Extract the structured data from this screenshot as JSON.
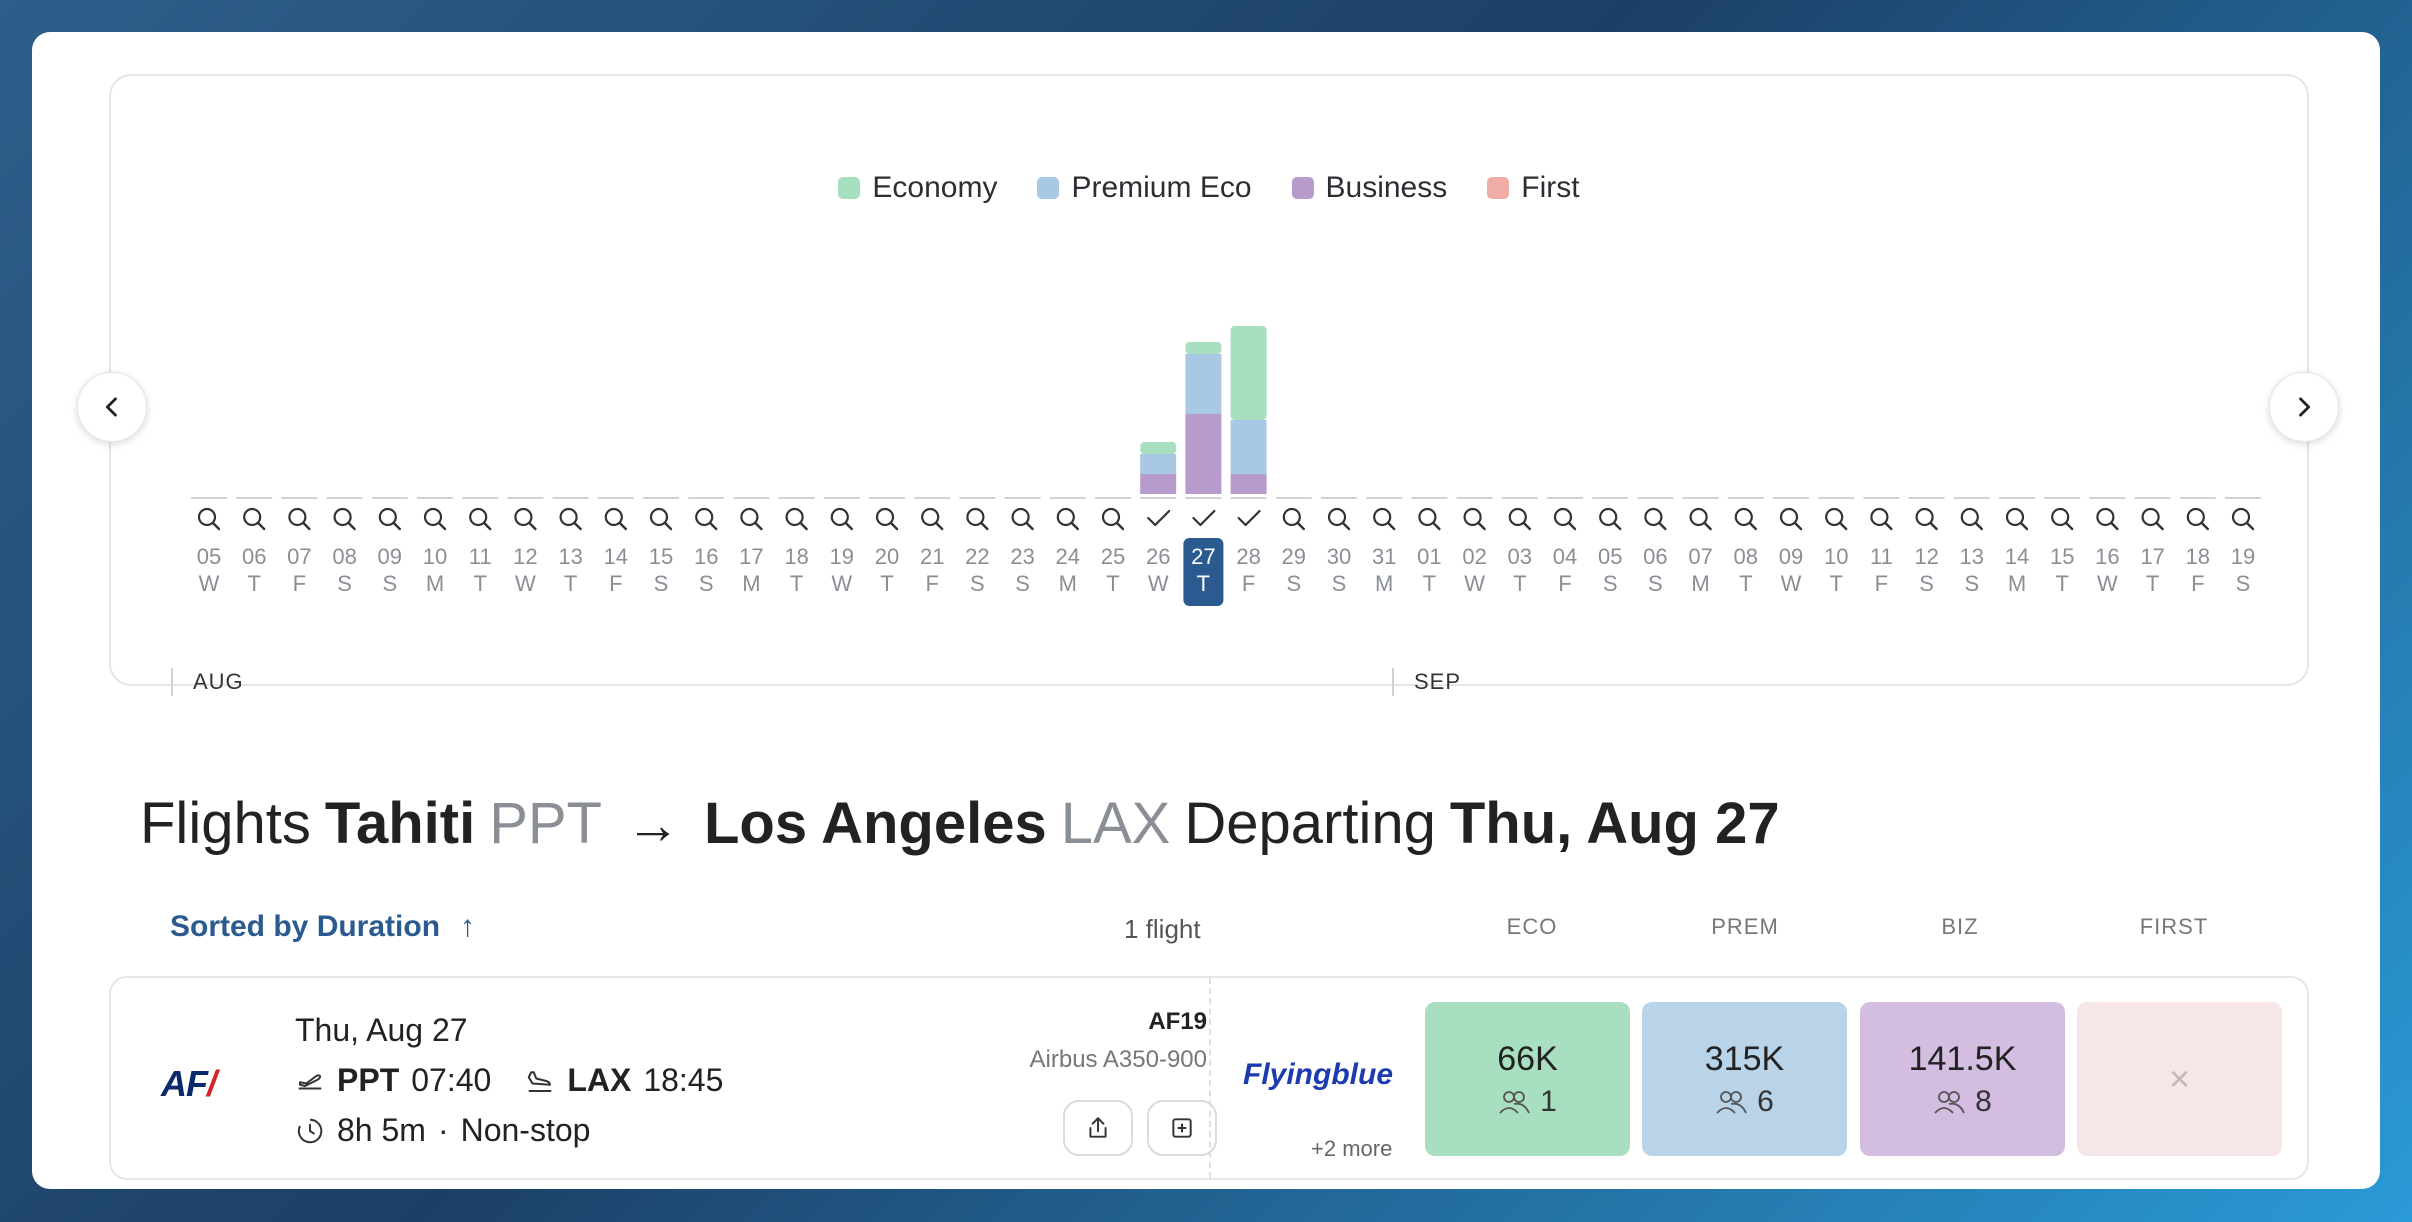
{
  "legend": [
    {
      "label": "Economy",
      "color": "#a8dfc0"
    },
    {
      "label": "Premium Eco",
      "color": "#a9c8e4"
    },
    {
      "label": "Business",
      "color": "#b79bcc"
    },
    {
      "label": "First",
      "color": "#f0aca6"
    }
  ],
  "calendar": {
    "months": [
      {
        "label": "AUG",
        "start_index": 0
      },
      {
        "label": "SEP",
        "start_index": 27
      }
    ],
    "selected_index": 22,
    "days": [
      {
        "d": "05",
        "w": "W"
      },
      {
        "d": "06",
        "w": "T"
      },
      {
        "d": "07",
        "w": "F"
      },
      {
        "d": "08",
        "w": "S"
      },
      {
        "d": "09",
        "w": "S"
      },
      {
        "d": "10",
        "w": "M"
      },
      {
        "d": "11",
        "w": "T"
      },
      {
        "d": "12",
        "w": "W"
      },
      {
        "d": "13",
        "w": "T"
      },
      {
        "d": "14",
        "w": "F"
      },
      {
        "d": "15",
        "w": "S"
      },
      {
        "d": "16",
        "w": "S"
      },
      {
        "d": "17",
        "w": "M"
      },
      {
        "d": "18",
        "w": "T"
      },
      {
        "d": "19",
        "w": "W"
      },
      {
        "d": "20",
        "w": "T"
      },
      {
        "d": "21",
        "w": "F"
      },
      {
        "d": "22",
        "w": "S"
      },
      {
        "d": "23",
        "w": "S"
      },
      {
        "d": "24",
        "w": "M"
      },
      {
        "d": "25",
        "w": "T"
      },
      {
        "d": "26",
        "w": "W"
      },
      {
        "d": "27",
        "w": "T"
      },
      {
        "d": "28",
        "w": "F"
      },
      {
        "d": "29",
        "w": "S"
      },
      {
        "d": "30",
        "w": "S"
      },
      {
        "d": "31",
        "w": "M"
      },
      {
        "d": "01",
        "w": "T"
      },
      {
        "d": "02",
        "w": "W"
      },
      {
        "d": "03",
        "w": "T"
      },
      {
        "d": "04",
        "w": "F"
      },
      {
        "d": "05",
        "w": "S"
      },
      {
        "d": "06",
        "w": "S"
      },
      {
        "d": "07",
        "w": "M"
      },
      {
        "d": "08",
        "w": "T"
      },
      {
        "d": "09",
        "w": "W"
      },
      {
        "d": "10",
        "w": "T"
      },
      {
        "d": "11",
        "w": "F"
      },
      {
        "d": "12",
        "w": "S"
      },
      {
        "d": "13",
        "w": "S"
      },
      {
        "d": "14",
        "w": "M"
      },
      {
        "d": "15",
        "w": "T"
      },
      {
        "d": "16",
        "w": "W"
      },
      {
        "d": "17",
        "w": "T"
      },
      {
        "d": "18",
        "w": "F"
      },
      {
        "d": "19",
        "w": "S"
      }
    ],
    "checked_indices": [
      21,
      22,
      23
    ]
  },
  "chart_data": {
    "type": "bar",
    "stacked": true,
    "categories": [
      "Aug 26",
      "Aug 27",
      "Aug 28"
    ],
    "series": [
      {
        "name": "Business",
        "values": [
          1,
          4,
          1
        ]
      },
      {
        "name": "Premium Eco",
        "values": [
          1,
          3,
          2.7
        ]
      },
      {
        "name": "Economy",
        "values": [
          0.6,
          0.6,
          4.7
        ]
      }
    ]
  },
  "heading": {
    "prefix": "Flights",
    "origin_city": "Tahiti",
    "origin_code": "PPT",
    "arrow": "→",
    "dest_city": "Los Angeles",
    "dest_code": "LAX",
    "departing": "Departing",
    "date": "Thu, Aug 27"
  },
  "sort": {
    "label": "Sorted by Duration",
    "arrow": "↑"
  },
  "flight_count": "1 flight",
  "columns": {
    "eco": "ECO",
    "prem": "PREM",
    "biz": "BIZ",
    "first": "FIRST"
  },
  "flight": {
    "airline_logo_text": "AF",
    "date": "Thu, Aug 27",
    "depart_code": "PPT",
    "depart_time": "07:40",
    "arrive_code": "LAX",
    "arrive_time": "18:45",
    "duration": "8h 5m",
    "dot": "·",
    "stops": "Non-stop",
    "number": "AF19",
    "aircraft": "Airbus A350-900",
    "program_logo_text": "Flyingblue",
    "more": "+2 more",
    "fares": {
      "eco": {
        "price": "66K",
        "seats": "1",
        "color": "#a8dfc0"
      },
      "prem": {
        "price": "315K",
        "seats": "6",
        "color": "#b9d3e8"
      },
      "biz": {
        "price": "141.5K",
        "seats": "8",
        "color": "#d3bde0"
      },
      "first": {
        "unavailable": "×",
        "color": "#f7e6e7"
      }
    }
  }
}
